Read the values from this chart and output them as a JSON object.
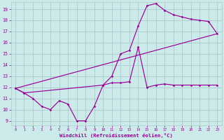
{
  "xlabel": "Windchill (Refroidissement éolien,°C)",
  "bg_color": "#cceaea",
  "grid_color": "#aacccc",
  "line_color": "#990099",
  "xlim_min": -0.5,
  "xlim_max": 23.5,
  "ylim_min": 8.6,
  "ylim_max": 19.6,
  "yticks": [
    9,
    10,
    11,
    12,
    13,
    14,
    15,
    16,
    17,
    18,
    19
  ],
  "xticks": [
    0,
    1,
    2,
    3,
    4,
    5,
    6,
    7,
    8,
    9,
    10,
    11,
    12,
    13,
    14,
    15,
    16,
    17,
    18,
    19,
    20,
    21,
    22,
    23
  ],
  "line1_x": [
    0,
    1,
    2,
    3,
    4,
    5,
    6,
    7,
    8,
    9,
    10,
    11,
    12,
    13,
    14,
    15,
    16,
    17,
    18,
    19,
    20,
    21,
    22,
    23
  ],
  "line1_y": [
    11.9,
    11.5,
    11.0,
    10.3,
    10.0,
    10.8,
    10.5,
    9.0,
    9.0,
    10.3,
    12.2,
    12.4,
    12.4,
    12.5,
    15.6,
    12.0,
    12.2,
    12.3,
    12.2,
    12.2,
    12.2,
    12.2,
    12.2,
    12.2
  ],
  "line2_x": [
    0,
    1,
    10,
    11,
    12,
    13,
    14,
    15,
    16,
    17,
    18,
    19,
    20,
    21,
    22,
    23
  ],
  "line2_y": [
    11.9,
    11.5,
    12.2,
    13.0,
    15.0,
    15.3,
    17.5,
    19.3,
    19.5,
    18.9,
    18.5,
    18.3,
    18.1,
    18.0,
    17.9,
    16.8
  ],
  "line3_x": [
    0,
    23
  ],
  "line3_y": [
    11.9,
    16.8
  ]
}
